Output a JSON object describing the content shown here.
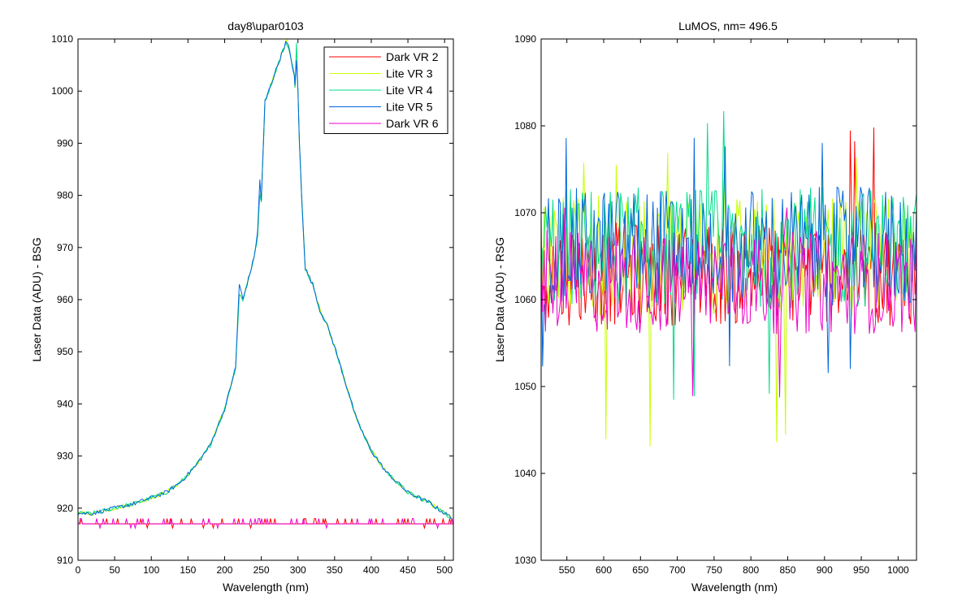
{
  "chart_data": [
    {
      "type": "line",
      "title": "day8\\upar0103",
      "xlabel": "Wavelength (nm)",
      "ylabel": "Laser Data (ADU) - BSG",
      "xlim": [
        0,
        512
      ],
      "ylim": [
        910,
        1010
      ],
      "xticks": [
        "0",
        "50",
        "100",
        "150",
        "200",
        "250",
        "300",
        "350",
        "400",
        "450",
        "500"
      ],
      "yticks": [
        "910",
        "920",
        "930",
        "940",
        "950",
        "960",
        "970",
        "980",
        "990",
        "1000",
        "1010"
      ],
      "grid": false,
      "legend_position": "top-right",
      "series": [
        {
          "name": "Dark VR 2",
          "color": "#ff0000",
          "profile": "flat",
          "x": [
            0,
            512
          ],
          "y": [
            917,
            917
          ]
        },
        {
          "name": "Lite VR 3",
          "color": "#c8ff00",
          "profile": "peak",
          "x": [
            0,
            20,
            50,
            80,
            100,
            120,
            140,
            160,
            180,
            200,
            215,
            220,
            225,
            240,
            245,
            248,
            250,
            255,
            270,
            285,
            295,
            296,
            298,
            300,
            302,
            305,
            310,
            320,
            330,
            340,
            350,
            380,
            400,
            420,
            450,
            480,
            500,
            512
          ],
          "y": [
            919,
            919,
            920,
            921,
            922,
            923,
            925,
            928,
            932,
            939,
            947,
            961,
            960,
            968,
            972,
            980,
            979,
            998,
            1004,
            1010,
            1003,
            1001,
            1009,
            1000,
            990,
            980,
            966,
            963,
            958,
            955,
            951,
            937,
            931,
            927,
            923,
            921,
            919,
            918
          ]
        },
        {
          "name": "Lite VR 4",
          "color": "#00dd88",
          "profile": "peak",
          "x": [
            0,
            20,
            50,
            80,
            100,
            120,
            140,
            160,
            180,
            200,
            215,
            220,
            225,
            240,
            245,
            248,
            250,
            255,
            270,
            285,
            295,
            296,
            298,
            300,
            302,
            305,
            310,
            320,
            330,
            340,
            350,
            380,
            400,
            420,
            450,
            480,
            500,
            512
          ],
          "y": [
            919,
            919,
            920,
            921,
            922,
            923,
            925,
            928,
            932,
            939,
            947,
            961,
            960,
            968,
            972,
            980,
            979,
            998,
            1004,
            1010,
            1003,
            1001,
            1009,
            1000,
            990,
            980,
            966,
            963,
            958,
            955,
            951,
            937,
            931,
            927,
            923,
            921,
            919,
            918
          ]
        },
        {
          "name": "Lite VR 5",
          "color": "#0066dd",
          "profile": "peak",
          "x": [
            0,
            20,
            50,
            80,
            100,
            120,
            140,
            160,
            180,
            200,
            215,
            220,
            225,
            240,
            245,
            248,
            250,
            255,
            270,
            285,
            295,
            296,
            298,
            300,
            302,
            305,
            310,
            320,
            330,
            340,
            350,
            380,
            400,
            420,
            450,
            480,
            500,
            512
          ],
          "y": [
            919,
            919,
            920,
            921,
            922,
            923,
            925,
            928,
            932,
            939,
            947,
            963,
            960,
            968,
            973,
            983,
            979,
            998,
            1004,
            1010,
            1003,
            1001,
            1006,
            1000,
            990,
            980,
            966,
            963,
            958,
            955,
            951,
            937,
            931,
            927,
            923,
            921,
            919,
            918
          ]
        },
        {
          "name": "Dark VR 6",
          "color": "#ee00cc",
          "profile": "flat",
          "x": [
            0,
            512
          ],
          "y": [
            917,
            917
          ]
        }
      ]
    },
    {
      "type": "line",
      "title": "LuMOS, nm= 496.5",
      "xlabel": "Wavelength (nm)",
      "ylabel": "Laser Data (ADU) - RSG",
      "xlim": [
        515,
        1025
      ],
      "ylim": [
        1030,
        1090
      ],
      "xticks": [
        "550",
        "600",
        "650",
        "700",
        "750",
        "800",
        "850",
        "900",
        "950",
        "1000"
      ],
      "yticks": [
        "1030",
        "1040",
        "1050",
        "1060",
        "1070",
        "1080",
        "1090"
      ],
      "grid": false,
      "legend_position": "none",
      "series": [
        {
          "name": "Dark VR 2",
          "color": "#ff0000",
          "profile": "noise",
          "center": 1063,
          "spread": 6,
          "max": 1080,
          "min": 1043
        },
        {
          "name": "Lite VR 3",
          "color": "#c8ff00",
          "profile": "noise",
          "center": 1065,
          "spread": 7,
          "max": 1077,
          "min": 1043
        },
        {
          "name": "Lite VR 4",
          "color": "#00dd88",
          "profile": "noise",
          "center": 1066,
          "spread": 7,
          "max": 1082,
          "min": 1048
        },
        {
          "name": "Lite VR 5",
          "color": "#0066dd",
          "profile": "noise",
          "center": 1066,
          "spread": 7,
          "max": 1079,
          "min": 1051
        },
        {
          "name": "Dark VR 6",
          "color": "#ee00cc",
          "profile": "noise",
          "center": 1062,
          "spread": 6,
          "max": 1071,
          "min": 1047
        }
      ]
    }
  ]
}
